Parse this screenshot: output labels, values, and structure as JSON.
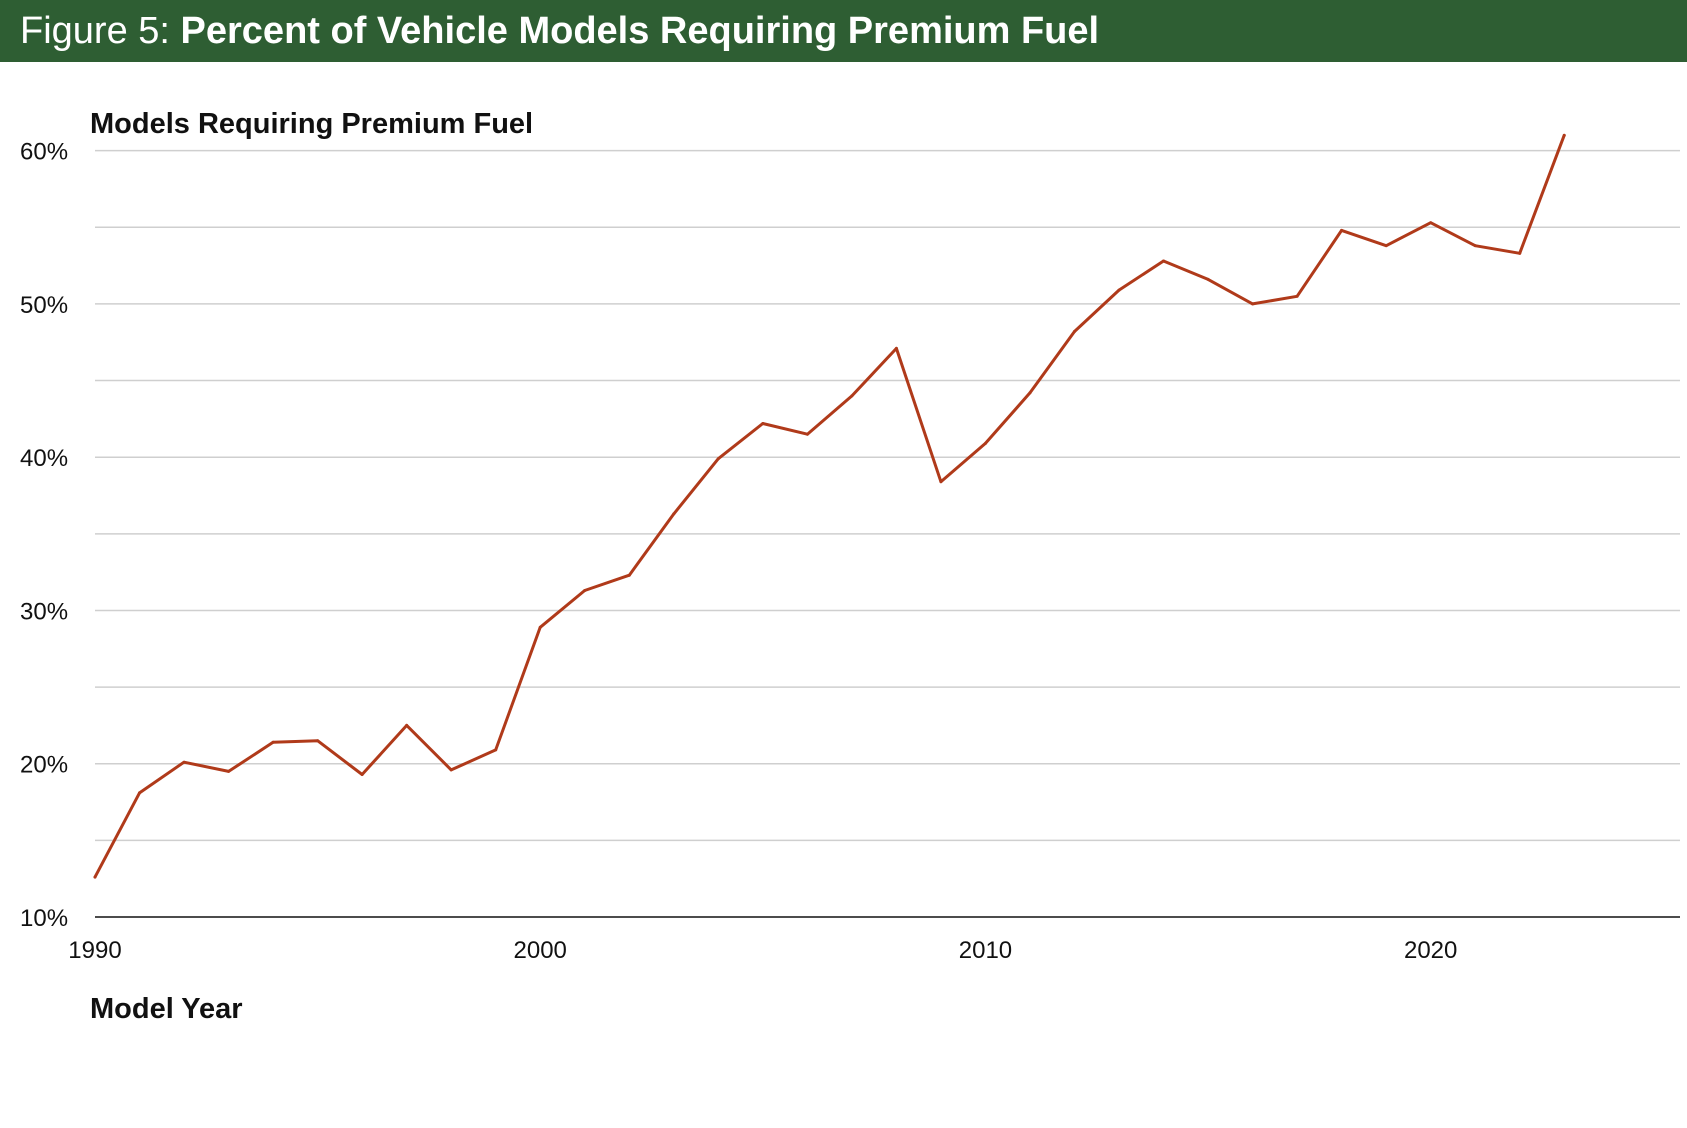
{
  "banner": {
    "prefix": "Figure 5: ",
    "title": "Percent of Vehicle Models Requiring Premium Fuel"
  },
  "colors": {
    "banner": "#2e5e33",
    "line": "#b03a1a",
    "grid": "#cfcfcf",
    "axis": "#111111"
  },
  "chart_data": {
    "type": "line",
    "title": "Percent of Vehicle Models Requiring Premium Fuel",
    "ylabel": "Models Requiring Premium Fuel",
    "xlabel": "Model Year",
    "x": [
      1990,
      1991,
      1992,
      1993,
      1994,
      1995,
      1996,
      1997,
      1998,
      1999,
      2000,
      2001,
      2002,
      2003,
      2004,
      2005,
      2006,
      2007,
      2008,
      2009,
      2010,
      2011,
      2012,
      2013,
      2014,
      2015,
      2016,
      2017,
      2018,
      2019,
      2020,
      2021,
      2022,
      2023
    ],
    "series": [
      {
        "values": [
          12.6,
          18.1,
          20.1,
          19.5,
          21.4,
          21.5,
          19.3,
          22.5,
          19.6,
          20.9,
          28.9,
          31.3,
          32.3,
          36.3,
          39.9,
          42.2,
          41.5,
          44.0,
          47.1,
          38.4,
          40.9,
          44.2,
          48.2,
          50.9,
          52.8,
          51.6,
          50.0,
          50.5,
          54.8,
          53.8,
          55.3,
          53.8,
          53.3,
          61.0
        ]
      }
    ],
    "ylim": [
      10,
      62
    ],
    "xlim": [
      1990,
      2025.6
    ],
    "yticks": [
      "10%",
      "20%",
      "30%",
      "40%",
      "50%",
      "60%"
    ],
    "xticks": [
      "1990",
      "2000",
      "2010",
      "2020"
    ],
    "grid": true,
    "legend": "none"
  }
}
